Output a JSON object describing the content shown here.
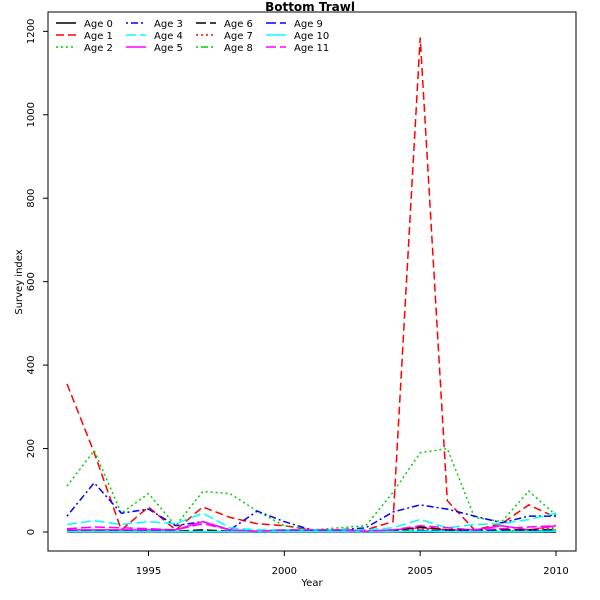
{
  "chart_data": {
    "type": "line",
    "title": "Bottom Trawl",
    "xlabel": "Year",
    "ylabel": "Survey index",
    "xlim": [
      1992,
      2010
    ],
    "ylim": [
      0,
      1220
    ],
    "xticks": [
      1995,
      2000,
      2005,
      2010
    ],
    "yticks": [
      0,
      200,
      400,
      600,
      800,
      1000,
      1200
    ],
    "grid": false,
    "legend_position": "top-left",
    "x": [
      1992,
      1993,
      1994,
      1995,
      1996,
      1997,
      1998,
      1999,
      2000,
      2001,
      2002,
      2003,
      2004,
      2005,
      2006,
      2007,
      2008,
      2009,
      2010
    ],
    "series": [
      {
        "name": "Age 0",
        "color": "#000000",
        "dash": "solid",
        "values": [
          0,
          0,
          0,
          0,
          0,
          0,
          0,
          0,
          0,
          0,
          0,
          0,
          0,
          0,
          0,
          0,
          0,
          0,
          0
        ]
      },
      {
        "name": "Age 1",
        "color": "#ff0000",
        "dash": "dashed",
        "values": [
          355,
          190,
          5,
          60,
          5,
          60,
          35,
          20,
          15,
          5,
          5,
          5,
          25,
          1185,
          75,
          5,
          20,
          65,
          35
        ]
      },
      {
        "name": "Age 2",
        "color": "#00cd00",
        "dash": "dotted",
        "values": [
          110,
          195,
          45,
          92,
          15,
          97,
          92,
          50,
          15,
          5,
          10,
          15,
          95,
          190,
          200,
          35,
          25,
          98,
          40
        ]
      },
      {
        "name": "Age 3",
        "color": "#0000ff",
        "dash": "dotdash",
        "values": [
          38,
          118,
          45,
          55,
          15,
          25,
          5,
          50,
          25,
          5,
          5,
          10,
          48,
          65,
          55,
          38,
          22,
          38,
          38
        ]
      },
      {
        "name": "Age 4",
        "color": "#00ffff",
        "dash": "longdash",
        "values": [
          18,
          27,
          18,
          25,
          20,
          45,
          10,
          5,
          5,
          5,
          5,
          5,
          10,
          30,
          10,
          18,
          20,
          30,
          45
        ]
      },
      {
        "name": "Age 5",
        "color": "#ff00ff",
        "dash": "solid",
        "values": [
          5,
          5,
          5,
          5,
          5,
          25,
          5,
          2,
          2,
          2,
          2,
          2,
          5,
          10,
          5,
          5,
          15,
          5,
          15
        ]
      },
      {
        "name": "Age 6",
        "color": "#000000",
        "dash": "longdash",
        "values": [
          2,
          2,
          2,
          2,
          2,
          5,
          2,
          2,
          2,
          2,
          2,
          2,
          2,
          12,
          5,
          5,
          5,
          5,
          5
        ]
      },
      {
        "name": "Age 7",
        "color": "#ff0000",
        "dash": "dotted",
        "values": [
          1,
          1,
          1,
          1,
          1,
          2,
          1,
          1,
          1,
          1,
          1,
          1,
          2,
          8,
          5,
          2,
          2,
          5,
          10
        ]
      },
      {
        "name": "Age 8",
        "color": "#00cd00",
        "dash": "dotdash",
        "values": [
          1,
          1,
          1,
          1,
          1,
          1,
          1,
          1,
          1,
          1,
          1,
          1,
          1,
          5,
          2,
          2,
          2,
          2,
          5
        ]
      },
      {
        "name": "Age 9",
        "color": "#0000ff",
        "dash": "longdash",
        "values": [
          1,
          1,
          1,
          1,
          1,
          1,
          1,
          1,
          1,
          1,
          1,
          1,
          1,
          3,
          2,
          2,
          1,
          2,
          3
        ]
      },
      {
        "name": "Age 10",
        "color": "#00ffff",
        "dash": "solid",
        "values": [
          1,
          1,
          1,
          1,
          1,
          1,
          1,
          1,
          1,
          1,
          1,
          1,
          1,
          2,
          1,
          1,
          1,
          1,
          2
        ]
      },
      {
        "name": "Age 11",
        "color": "#ff00ff",
        "dash": "longdash",
        "values": [
          8,
          12,
          10,
          8,
          5,
          20,
          5,
          2,
          5,
          5,
          5,
          2,
          5,
          15,
          10,
          5,
          8,
          12,
          15
        ]
      }
    ]
  }
}
